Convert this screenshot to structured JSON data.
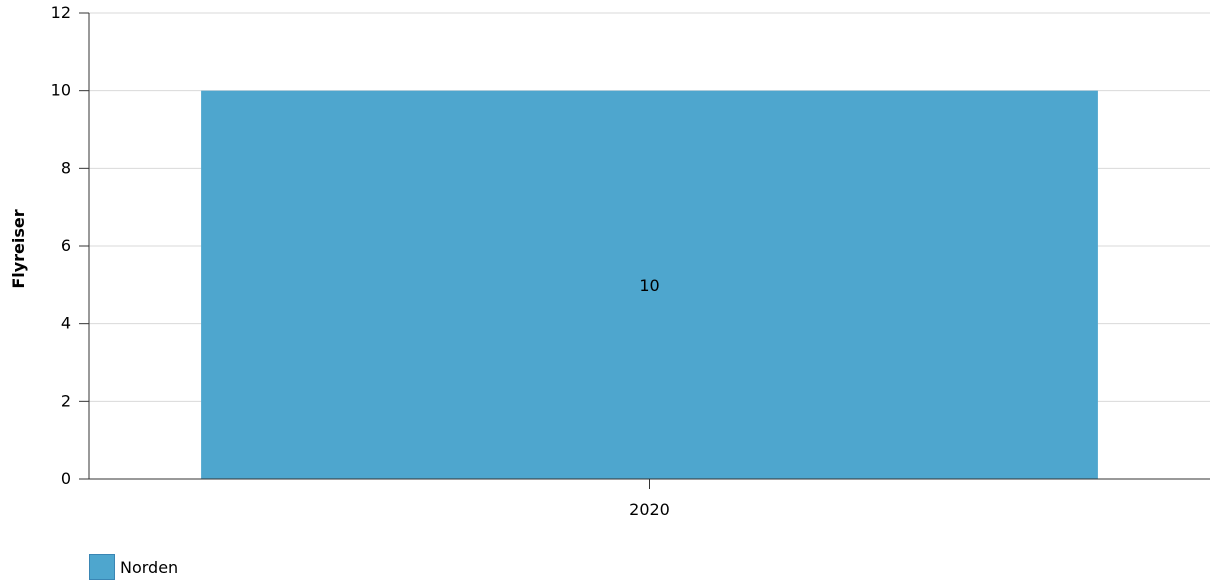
{
  "chart_data": {
    "type": "bar",
    "categories": [
      "2020"
    ],
    "series": [
      {
        "name": "Norden",
        "values": [
          10
        ],
        "color": "#4ea6ce"
      }
    ],
    "ylabel": "Flyreiser",
    "xlabel": "",
    "ylim": [
      0,
      12
    ],
    "yticks": [
      0,
      2,
      4,
      6,
      8,
      10,
      12
    ],
    "data_labels": [
      "10"
    ],
    "grid": true,
    "legend_position": "bottom-left"
  }
}
